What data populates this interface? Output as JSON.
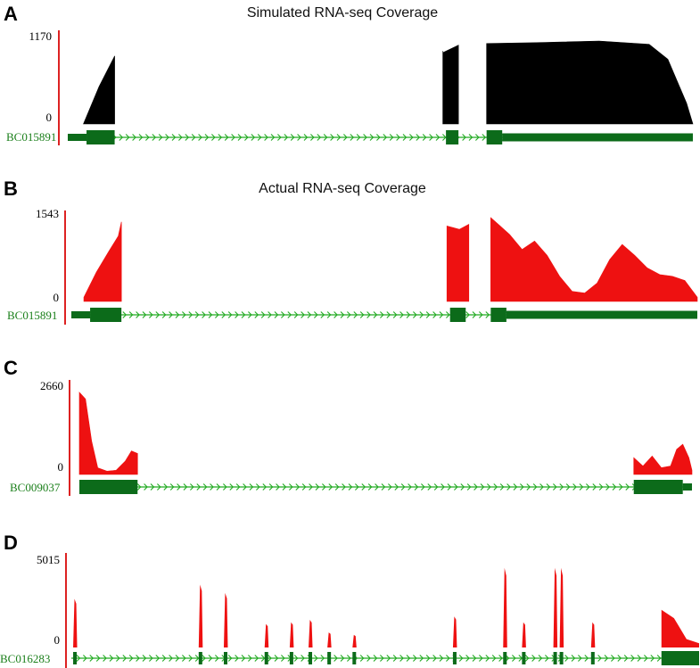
{
  "colors": {
    "gene": "#0c6b1a",
    "gene_text": "#1a7f1a",
    "intron_arrow": "#22aa22",
    "simulated": "#000000",
    "actual": "#ee1111",
    "axis": "#dd2222"
  },
  "chart_data": [
    {
      "type": "area",
      "panel": "A",
      "title": "Simulated RNA-seq Coverage",
      "y_max_label": "1170",
      "y_min_label": "0",
      "ylim": [
        0,
        1170
      ],
      "gene": "BC015891",
      "series_color": "simulated",
      "coverage": [
        [
          [
            0.025,
            0
          ],
          [
            0.05,
            0.45
          ],
          [
            0.075,
            0.82
          ]
        ],
        [
          [
            0.6,
            0.88
          ],
          [
            0.6,
            0.86
          ],
          [
            0.625,
            0.95
          ]
        ],
        [
          [
            0.67,
            0.97
          ],
          [
            0.75,
            0.98
          ],
          [
            0.85,
            1.0
          ],
          [
            0.93,
            0.96
          ],
          [
            0.96,
            0.78
          ],
          [
            0.99,
            0.25
          ],
          [
            1.0,
            0.0
          ]
        ]
      ],
      "exons": [
        [
          0.0,
          0.03,
          "thin"
        ],
        [
          0.03,
          0.075,
          "thick"
        ],
        [
          0.605,
          0.625,
          "thick"
        ],
        [
          0.67,
          0.695,
          "thick"
        ],
        [
          0.695,
          1.0,
          "utr"
        ]
      ]
    },
    {
      "type": "area",
      "panel": "B",
      "title": "Actual RNA-seq Coverage",
      "y_max_label": "1543",
      "y_min_label": "0",
      "ylim": [
        0,
        1543
      ],
      "gene": "BC015891",
      "series_color": "actual",
      "coverage": [
        [
          [
            0.02,
            0.05
          ],
          [
            0.04,
            0.35
          ],
          [
            0.06,
            0.6
          ],
          [
            0.075,
            0.78
          ],
          [
            0.08,
            0.95
          ]
        ],
        [
          [
            0.6,
            0.9
          ],
          [
            0.62,
            0.86
          ],
          [
            0.635,
            0.92
          ]
        ],
        [
          [
            0.67,
            1.0
          ],
          [
            0.685,
            0.9
          ],
          [
            0.7,
            0.8
          ],
          [
            0.72,
            0.62
          ],
          [
            0.74,
            0.72
          ],
          [
            0.76,
            0.55
          ],
          [
            0.78,
            0.3
          ],
          [
            0.8,
            0.12
          ],
          [
            0.82,
            0.1
          ],
          [
            0.84,
            0.22
          ],
          [
            0.86,
            0.5
          ],
          [
            0.88,
            0.68
          ],
          [
            0.9,
            0.55
          ],
          [
            0.92,
            0.4
          ],
          [
            0.94,
            0.32
          ],
          [
            0.96,
            0.3
          ],
          [
            0.98,
            0.25
          ],
          [
            1.0,
            0.05
          ]
        ]
      ],
      "exons": [
        [
          0.0,
          0.03,
          "thin"
        ],
        [
          0.03,
          0.08,
          "thick"
        ],
        [
          0.605,
          0.63,
          "thick"
        ],
        [
          0.67,
          0.695,
          "thick"
        ],
        [
          0.695,
          1.0,
          "utr"
        ]
      ]
    },
    {
      "type": "area",
      "panel": "C",
      "title": "",
      "y_max_label": "2660",
      "y_min_label": "0",
      "ylim": [
        0,
        2660
      ],
      "gene": "BC009037",
      "series_color": "actual",
      "coverage": [
        [
          [
            0.0,
            0.98
          ],
          [
            0.01,
            0.9
          ],
          [
            0.02,
            0.4
          ],
          [
            0.03,
            0.08
          ],
          [
            0.045,
            0.04
          ],
          [
            0.06,
            0.05
          ],
          [
            0.075,
            0.16
          ],
          [
            0.085,
            0.28
          ],
          [
            0.095,
            0.25
          ]
        ],
        [
          [
            0.905,
            0.2
          ],
          [
            0.92,
            0.1
          ],
          [
            0.935,
            0.22
          ],
          [
            0.95,
            0.08
          ],
          [
            0.965,
            0.1
          ],
          [
            0.975,
            0.3
          ],
          [
            0.985,
            0.36
          ],
          [
            0.995,
            0.2
          ],
          [
            1.0,
            0.05
          ]
        ]
      ],
      "exons": [
        [
          0.0,
          0.095,
          "thick"
        ],
        [
          0.905,
          0.985,
          "thick"
        ],
        [
          0.985,
          1.0,
          "thin"
        ]
      ]
    },
    {
      "type": "area",
      "panel": "D",
      "title": "",
      "y_max_label": "5015",
      "y_min_label": "0",
      "ylim": [
        0,
        5015
      ],
      "gene": "BC016283",
      "series_color": "actual",
      "spikes": [
        [
          0.005,
          0.58
        ],
        [
          0.205,
          0.75
        ],
        [
          0.245,
          0.65
        ],
        [
          0.31,
          0.28
        ],
        [
          0.35,
          0.3
        ],
        [
          0.38,
          0.33
        ],
        [
          0.41,
          0.18
        ],
        [
          0.45,
          0.15
        ],
        [
          0.61,
          0.37
        ],
        [
          0.69,
          0.95
        ],
        [
          0.72,
          0.3
        ],
        [
          0.77,
          0.95
        ],
        [
          0.78,
          0.95
        ],
        [
          0.83,
          0.3
        ]
      ],
      "tail": [
        [
          0.94,
          0.45
        ],
        [
          0.96,
          0.35
        ],
        [
          0.98,
          0.1
        ],
        [
          1.0,
          0.05
        ]
      ],
      "exons": [
        [
          0.0,
          0.94,
          "ticks"
        ],
        [
          0.94,
          1.0,
          "thick"
        ]
      ]
    }
  ]
}
